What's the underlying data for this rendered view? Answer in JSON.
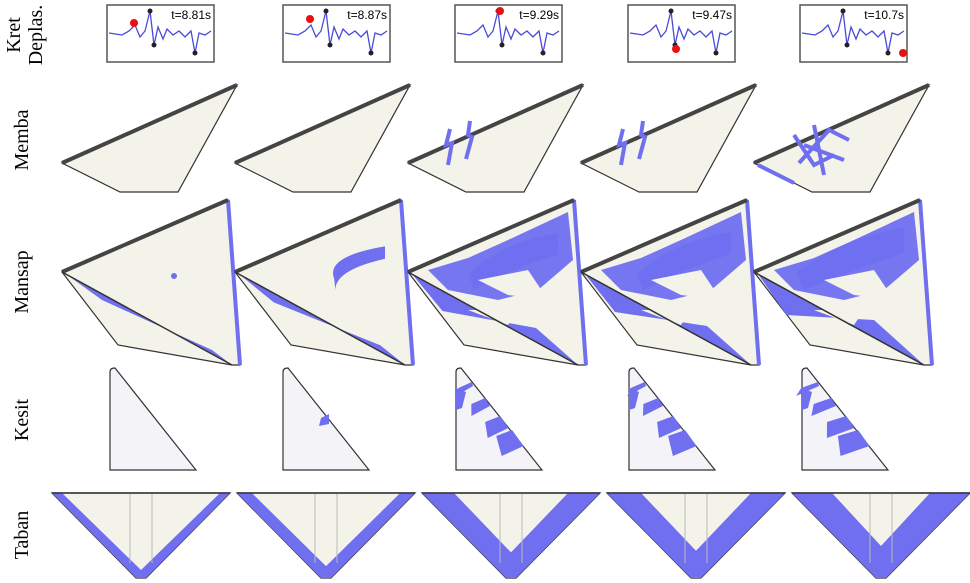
{
  "row_labels": [
    [
      "Kret",
      "Deplas."
    ],
    [
      "Memba"
    ],
    [
      "Mansap"
    ],
    [
      "Kesit"
    ],
    [
      "Taban"
    ]
  ],
  "time_labels": [
    "t=8.81s",
    "t=8.87s",
    "t=9.29s",
    "t=9.47s",
    "t=10.7s"
  ]
}
